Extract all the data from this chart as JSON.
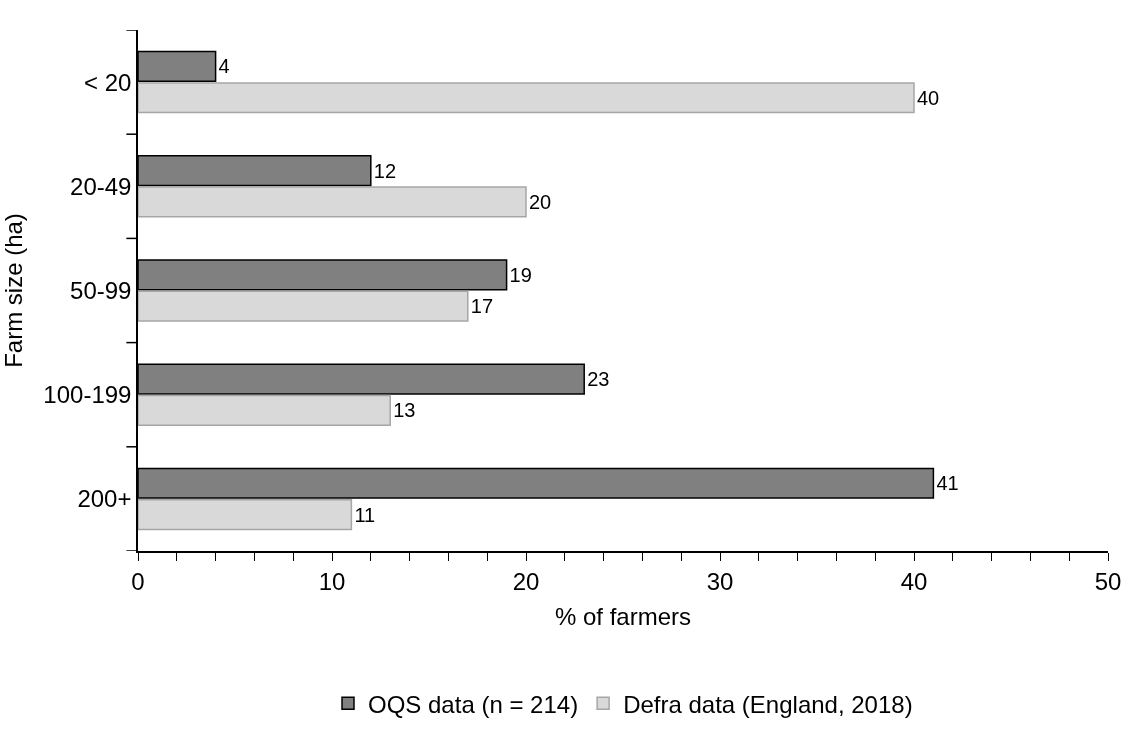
{
  "chart_data": {
    "type": "bar",
    "orientation": "horizontal",
    "xlabel": "% of farmers",
    "ylabel": "Farm size (ha)",
    "categories": [
      "< 20",
      "20-49",
      "50-99",
      "100-199",
      "200+"
    ],
    "series": [
      {
        "name": "OQS data (n = 214)",
        "color": "#808080",
        "values": [
          4,
          12,
          19,
          23,
          41
        ]
      },
      {
        "name": "Defra data (England, 2018)",
        "color": "#d9d9d9",
        "values": [
          40,
          20,
          17,
          13,
          11
        ]
      }
    ],
    "xlim": [
      0,
      50
    ],
    "xticks": [
      0,
      {
        "value": 2,
        "label": null
      },
      {
        "value": 4,
        "label": null
      },
      {
        "value": 6,
        "label": null
      },
      {
        "value": 8,
        "label": null
      },
      10,
      {
        "value": 12,
        "label": null
      },
      {
        "value": 14,
        "label": null
      },
      {
        "value": 16,
        "label": null
      },
      {
        "value": 18,
        "label": null
      },
      20,
      {
        "value": 22,
        "label": null
      },
      {
        "value": 24,
        "label": null
      },
      {
        "value": 26,
        "label": null
      },
      {
        "value": 28,
        "label": null
      },
      30,
      {
        "value": 32,
        "label": null
      },
      {
        "value": 34,
        "label": null
      },
      {
        "value": 36,
        "label": null
      },
      {
        "value": 38,
        "label": null
      },
      40,
      {
        "value": 42,
        "label": null
      },
      {
        "value": 44,
        "label": null
      },
      {
        "value": 46,
        "label": null
      },
      {
        "value": 48,
        "label": null
      },
      50
    ],
    "data_labels": true,
    "legend": "bottom"
  }
}
